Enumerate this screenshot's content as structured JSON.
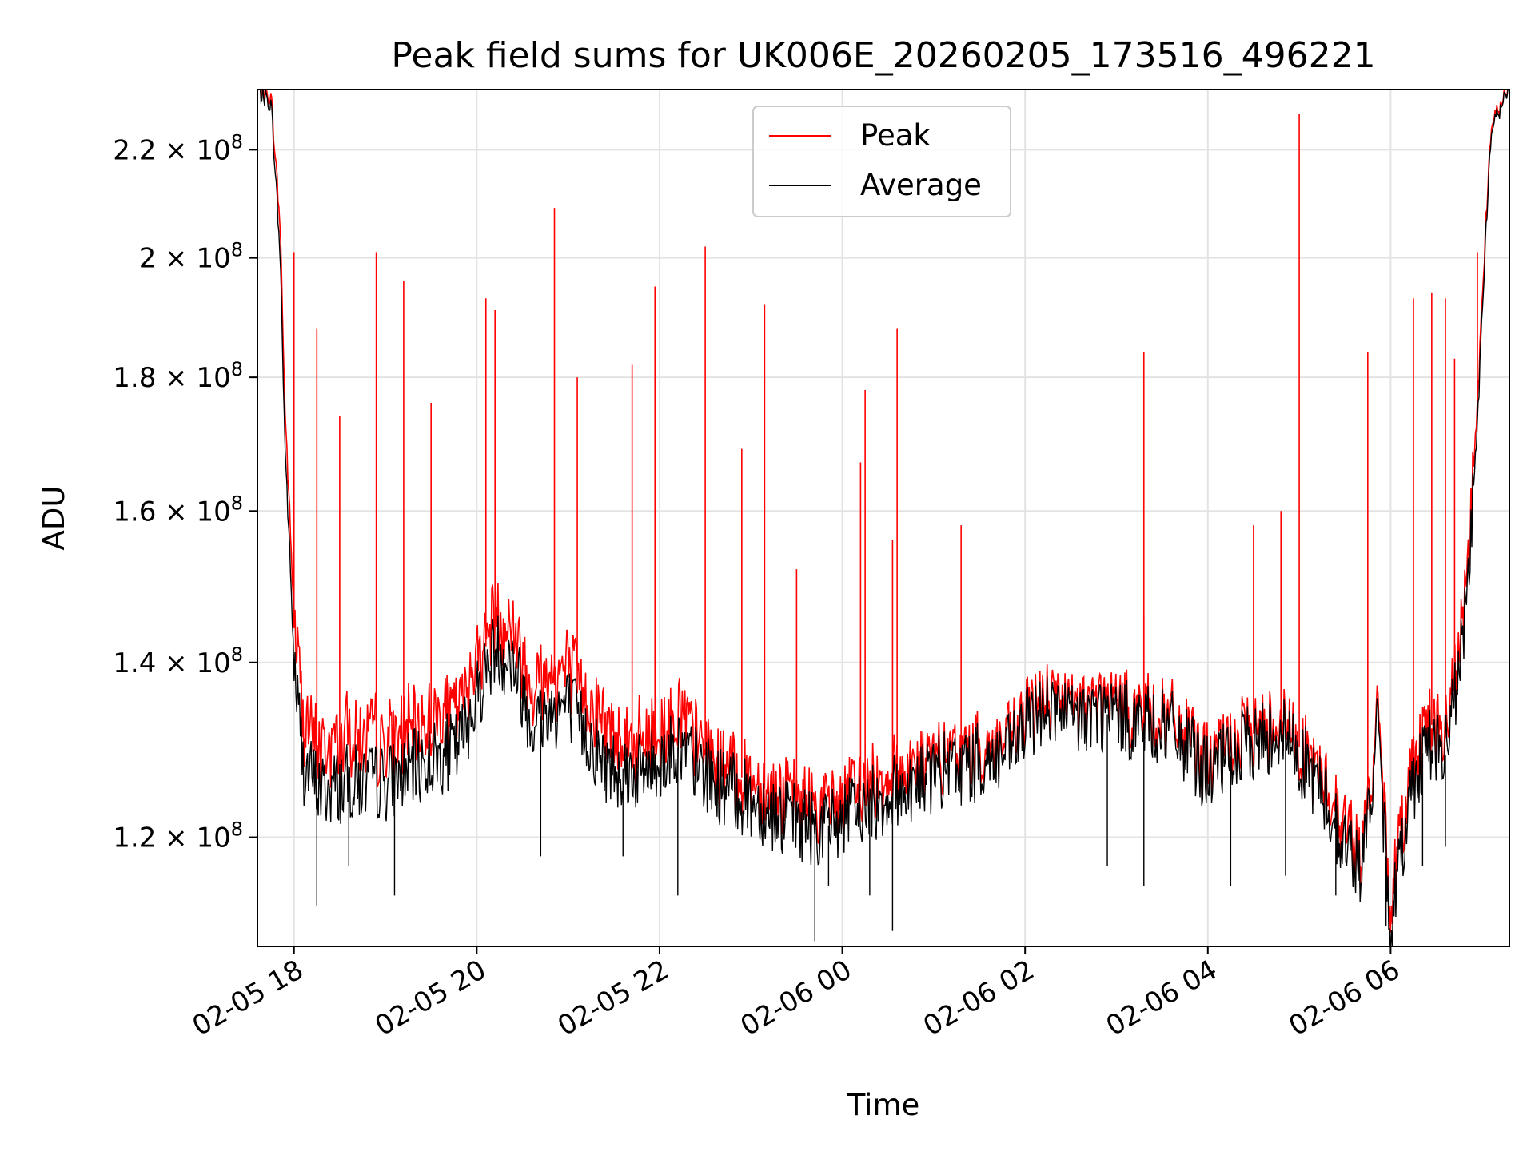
{
  "chart_data": {
    "type": "line",
    "title": "Peak field sums for UK006E_20260205_173516_496221",
    "xlabel": "Time",
    "ylabel": "ADU",
    "yscale": "log",
    "grid": true,
    "legend_position": "upper center",
    "xlim": [
      17.6,
      31.3
    ],
    "ylim": [
      109000000,
      232000000
    ],
    "x_ticks": [
      {
        "value": 18,
        "label": "02-05 18"
      },
      {
        "value": 20,
        "label": "02-05 20"
      },
      {
        "value": 22,
        "label": "02-05 22"
      },
      {
        "value": 24,
        "label": "02-06 00"
      },
      {
        "value": 26,
        "label": "02-06 02"
      },
      {
        "value": 28,
        "label": "02-06 04"
      },
      {
        "value": 30,
        "label": "02-06 06"
      }
    ],
    "y_ticks": [
      {
        "value": 120000000,
        "mantissa": "1.2"
      },
      {
        "value": 140000000,
        "mantissa": "1.4"
      },
      {
        "value": 160000000,
        "mantissa": "1.6"
      },
      {
        "value": 180000000,
        "mantissa": "1.8"
      },
      {
        "value": 200000000,
        "mantissa": "2"
      },
      {
        "value": 220000000,
        "mantissa": "2.2"
      }
    ],
    "y_tick_exponent_text": "× 10",
    "y_tick_exponent": "8",
    "x_unit": "hours since 2026-02-05 00:00",
    "series": [
      {
        "name": "Peak",
        "color": "#ff0000",
        "x": [
          17.6,
          17.75,
          17.85,
          17.9,
          18.0,
          18.1,
          18.3,
          18.6,
          19.0,
          19.4,
          19.8,
          20.2,
          20.4,
          20.6,
          21.0,
          21.4,
          21.8,
          22.2,
          22.6,
          23.0,
          23.4,
          23.8,
          24.2,
          24.6,
          25.0,
          25.4,
          25.8,
          26.2,
          26.5,
          26.8,
          27.2,
          27.6,
          28.0,
          28.4,
          28.8,
          29.2,
          29.5,
          29.7,
          29.85,
          30.0,
          30.2,
          30.4,
          30.6,
          30.8,
          30.95,
          31.1,
          31.3
        ],
        "values": [
          232000000,
          230000000,
          205000000,
          175000000,
          145000000,
          132000000,
          128000000,
          130000000,
          129000000,
          131000000,
          133000000,
          145000000,
          143000000,
          136000000,
          138000000,
          131000000,
          129000000,
          132000000,
          128000000,
          126000000,
          124000000,
          123000000,
          125000000,
          127000000,
          128000000,
          129000000,
          130000000,
          136000000,
          134000000,
          135000000,
          134000000,
          133000000,
          128000000,
          131000000,
          133000000,
          127000000,
          121000000,
          118000000,
          133000000,
          113000000,
          126000000,
          133000000,
          131000000,
          145000000,
          175000000,
          225000000,
          232000000
        ],
        "spikes": [
          {
            "x": 18.0,
            "value": 201000000
          },
          {
            "x": 18.25,
            "value": 188000000
          },
          {
            "x": 18.5,
            "value": 174000000
          },
          {
            "x": 18.9,
            "value": 201000000
          },
          {
            "x": 19.2,
            "value": 196000000
          },
          {
            "x": 19.5,
            "value": 176000000
          },
          {
            "x": 20.1,
            "value": 193000000
          },
          {
            "x": 20.2,
            "value": 191000000
          },
          {
            "x": 20.85,
            "value": 209000000
          },
          {
            "x": 21.1,
            "value": 180000000
          },
          {
            "x": 21.7,
            "value": 182000000
          },
          {
            "x": 21.95,
            "value": 195000000
          },
          {
            "x": 22.5,
            "value": 202000000
          },
          {
            "x": 22.9,
            "value": 169000000
          },
          {
            "x": 23.15,
            "value": 192000000
          },
          {
            "x": 23.5,
            "value": 152000000
          },
          {
            "x": 24.2,
            "value": 167000000
          },
          {
            "x": 24.25,
            "value": 178000000
          },
          {
            "x": 24.6,
            "value": 188000000
          },
          {
            "x": 24.55,
            "value": 156000000
          },
          {
            "x": 25.3,
            "value": 158000000
          },
          {
            "x": 27.3,
            "value": 184000000
          },
          {
            "x": 27.3,
            "value": 146000000
          },
          {
            "x": 28.5,
            "value": 158000000
          },
          {
            "x": 28.8,
            "value": 160000000
          },
          {
            "x": 29.0,
            "value": 227000000
          },
          {
            "x": 29.75,
            "value": 184000000
          },
          {
            "x": 30.25,
            "value": 193000000
          },
          {
            "x": 30.6,
            "value": 193000000
          },
          {
            "x": 30.45,
            "value": 194000000
          },
          {
            "x": 30.7,
            "value": 183000000
          },
          {
            "x": 30.95,
            "value": 201000000
          }
        ]
      },
      {
        "name": "Average",
        "color": "#000000",
        "x": [
          17.6,
          17.75,
          17.85,
          17.9,
          18.0,
          18.1,
          18.3,
          18.6,
          19.0,
          19.4,
          19.8,
          20.2,
          20.4,
          20.6,
          21.0,
          21.4,
          21.8,
          22.2,
          22.6,
          23.0,
          23.4,
          23.8,
          24.2,
          24.6,
          25.0,
          25.4,
          25.8,
          26.2,
          26.5,
          26.8,
          27.2,
          27.6,
          28.0,
          28.4,
          28.8,
          29.2,
          29.5,
          29.7,
          29.85,
          30.0,
          30.2,
          30.4,
          30.6,
          30.8,
          30.95,
          31.1,
          31.3
        ],
        "values": [
          232000000,
          229000000,
          200000000,
          170000000,
          140000000,
          128000000,
          125000000,
          126000000,
          126000000,
          128000000,
          130000000,
          142000000,
          140000000,
          133000000,
          135000000,
          128000000,
          127000000,
          130000000,
          126000000,
          124000000,
          122000000,
          121000000,
          123000000,
          125000000,
          127000000,
          128000000,
          129000000,
          135000000,
          133000000,
          134000000,
          133000000,
          132000000,
          127000000,
          130000000,
          132000000,
          126000000,
          119000000,
          117000000,
          132000000,
          111000000,
          124000000,
          131000000,
          129000000,
          143000000,
          172000000,
          224000000,
          232000000
        ],
        "dips": [
          {
            "x": 18.25,
            "value": 113000000
          },
          {
            "x": 18.6,
            "value": 117000000
          },
          {
            "x": 19.1,
            "value": 114000000
          },
          {
            "x": 20.7,
            "value": 118000000
          },
          {
            "x": 21.6,
            "value": 118000000
          },
          {
            "x": 22.2,
            "value": 114000000
          },
          {
            "x": 23.7,
            "value": 109500000
          },
          {
            "x": 23.85,
            "value": 115000000
          },
          {
            "x": 24.3,
            "value": 114000000
          },
          {
            "x": 24.55,
            "value": 110500000
          },
          {
            "x": 26.9,
            "value": 117000000
          },
          {
            "x": 27.3,
            "value": 115000000
          },
          {
            "x": 28.25,
            "value": 115000000
          },
          {
            "x": 28.85,
            "value": 116000000
          },
          {
            "x": 29.4,
            "value": 114000000
          },
          {
            "x": 29.95,
            "value": 111000000
          },
          {
            "x": 30.35,
            "value": 117000000
          },
          {
            "x": 30.6,
            "value": 119000000
          }
        ]
      }
    ]
  }
}
